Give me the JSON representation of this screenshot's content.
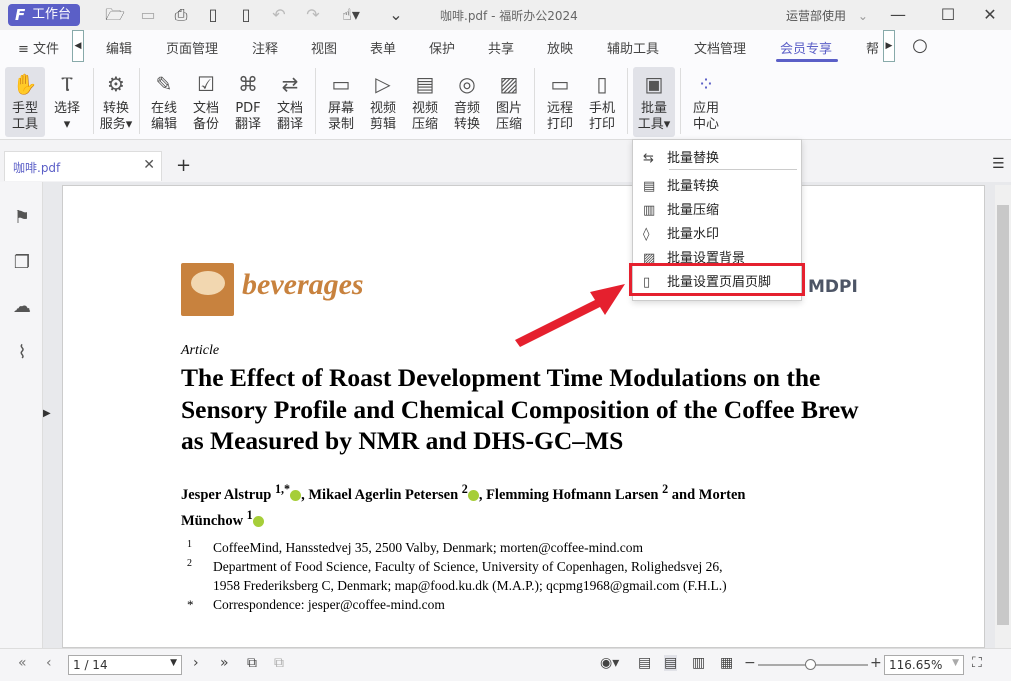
{
  "titlebar": {
    "workbench": "工作台",
    "doc_title": "咖啡.pdf - 福昕办公2024",
    "user": "运营部使用"
  },
  "menu": {
    "file": "文件",
    "tabs": [
      "编辑",
      "页面管理",
      "注释",
      "视图",
      "表单",
      "保护",
      "共享",
      "放映",
      "辅助工具",
      "文档管理",
      "会员专享",
      "帮"
    ],
    "active": "会员专享"
  },
  "ribbon": [
    [
      "手型",
      "工具"
    ],
    [
      "选择",
      ""
    ],
    [
      "转换",
      "服务"
    ],
    [
      "在线",
      "编辑"
    ],
    [
      "文档",
      "备份"
    ],
    [
      "PDF",
      "翻译"
    ],
    [
      "文档",
      "翻译"
    ],
    [
      "屏幕",
      "录制"
    ],
    [
      "视频",
      "剪辑"
    ],
    [
      "视频",
      "压缩"
    ],
    [
      "音频",
      "转换"
    ],
    [
      "图片",
      "压缩"
    ],
    [
      "远程",
      "打印"
    ],
    [
      "手机",
      "打印"
    ],
    [
      "批量",
      "工具"
    ],
    [
      "应用",
      "中心"
    ]
  ],
  "doc_tab": "咖啡.pdf",
  "dropdown": {
    "items": [
      "批量替换",
      "批量转换",
      "批量压缩",
      "批量水印",
      "批量设置背景",
      "批量设置页眉页脚"
    ],
    "highlighted": "批量设置页眉页脚"
  },
  "pdf": {
    "journal": "beverages",
    "publisher": "MDPI",
    "type": "Article",
    "title": "The Effect of Roast Development Time Modulations on the Sensory Profile and Chemical Composition of the Coffee Brew as Measured by NMR and DHS-GC–MS",
    "authors": [
      "Jesper Alstrup",
      "1,*",
      ", Mikael Agerlin Petersen",
      "2",
      ", Flemming Hofmann Larsen",
      "2",
      " and Morten Münchow",
      "1"
    ],
    "affiliations": [
      {
        "mark": "1",
        "text": "CoffeeMind, Hansstedvej 35, 2500 Valby, Denmark; morten@coffee-mind.com"
      },
      {
        "mark": "2",
        "text": "Department of Food Science, Faculty of Science, University of Copenhagen, Rolighedsvej 26,"
      },
      {
        "mark": "",
        "text": "1958 Frederiksberg C, Denmark; map@food.ku.dk (M.A.P.); qcpmg1968@gmail.com (F.H.L.)"
      },
      {
        "mark": "*",
        "text": "Correspondence: jesper@coffee-mind.com"
      }
    ]
  },
  "status": {
    "page": "1 / 14",
    "zoom": "116.65%",
    "zoom_level": 0.47
  },
  "colors": {
    "accent": "#5b5fc7",
    "highlight": "#e5202e"
  }
}
